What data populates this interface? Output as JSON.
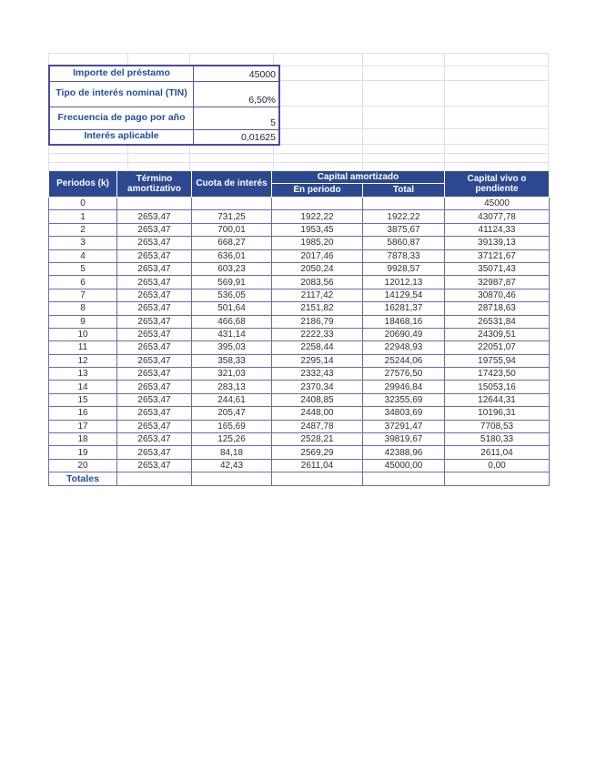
{
  "colors": {
    "header_fill": "#2b4890",
    "header_text": "#ffffff",
    "label_text": "#1f4e9c",
    "cell_border": "#6b6bad",
    "outer_border": "#4a4a9e",
    "faint_gridline": "#dedee9",
    "data_text": "#303030"
  },
  "params": {
    "rows": [
      {
        "label": "Importe del préstamo",
        "value": "45000"
      },
      {
        "label": "Tipo de interés nominal (TIN)",
        "value": "6,50%"
      },
      {
        "label": "Frecuencia de pago por año",
        "value": "5"
      },
      {
        "label": "Interés aplicable",
        "value": "0,01625"
      }
    ]
  },
  "table": {
    "headers": {
      "periodos": "Periodos (k)",
      "termino": "Término amortizativo",
      "cuota": "Cuota de interés",
      "capital_amortizado": "Capital amortizado",
      "en_periodo": "En periodo",
      "total": "Total",
      "capital_vivo": "Capital vivo o pendiente"
    },
    "rows": [
      [
        "0",
        "",
        "",
        "",
        "",
        "45000"
      ],
      [
        "1",
        "2653,47",
        "731,25",
        "1922,22",
        "1922,22",
        "43077,78"
      ],
      [
        "2",
        "2653,47",
        "700,01",
        "1953,45",
        "3875,67",
        "41124,33"
      ],
      [
        "3",
        "2653,47",
        "668,27",
        "1985,20",
        "5860,87",
        "39139,13"
      ],
      [
        "4",
        "2653,47",
        "636,01",
        "2017,46",
        "7878,33",
        "37121,67"
      ],
      [
        "5",
        "2653,47",
        "603,23",
        "2050,24",
        "9928,57",
        "35071,43"
      ],
      [
        "6",
        "2653,47",
        "569,91",
        "2083,56",
        "12012,13",
        "32987,87"
      ],
      [
        "7",
        "2653,47",
        "536,05",
        "2117,42",
        "14129,54",
        "30870,46"
      ],
      [
        "8",
        "2653,47",
        "501,64",
        "2151,82",
        "16281,37",
        "28718,63"
      ],
      [
        "9",
        "2653,47",
        "466,68",
        "2186,79",
        "18468,16",
        "26531,84"
      ],
      [
        "10",
        "2653,47",
        "431,14",
        "2222,33",
        "20690,49",
        "24309,51"
      ],
      [
        "11",
        "2653,47",
        "395,03",
        "2258,44",
        "22948,93",
        "22051,07"
      ],
      [
        "12",
        "2653,47",
        "358,33",
        "2295,14",
        "25244,06",
        "19755,94"
      ],
      [
        "13",
        "2653,47",
        "321,03",
        "2332,43",
        "27576,50",
        "17423,50"
      ],
      [
        "14",
        "2653,47",
        "283,13",
        "2370,34",
        "29946,84",
        "15053,16"
      ],
      [
        "15",
        "2653,47",
        "244,61",
        "2408,85",
        "32355,69",
        "12644,31"
      ],
      [
        "16",
        "2653,47",
        "205,47",
        "2448,00",
        "34803,69",
        "10196,31"
      ],
      [
        "17",
        "2653,47",
        "165,69",
        "2487,78",
        "37291,47",
        "7708,53"
      ],
      [
        "18",
        "2653,47",
        "125,26",
        "2528,21",
        "39819,67",
        "5180,33"
      ],
      [
        "19",
        "2653,47",
        "84,18",
        "2569,29",
        "42388,96",
        "2611,04"
      ],
      [
        "20",
        "2653,47",
        "42,43",
        "2611,04",
        "45000,00",
        "0,00"
      ]
    ],
    "footer_label": "Totales"
  }
}
